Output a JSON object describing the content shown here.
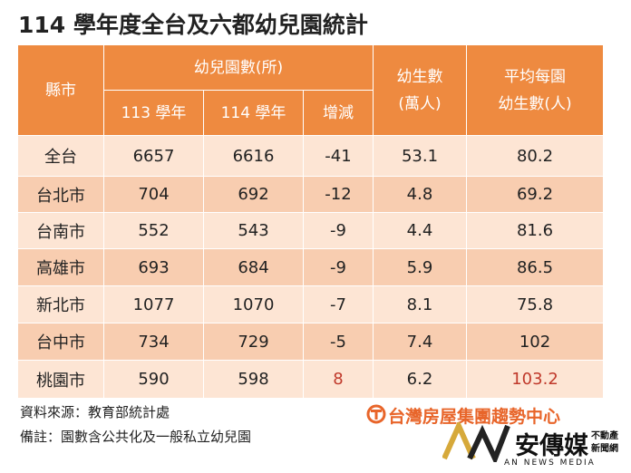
{
  "title": "114 學年度全台及六都幼兒園統計",
  "table": {
    "headers": {
      "county": "縣市",
      "kindergartens": "幼兒園數(所)",
      "year113": "113 學年",
      "year114": "114 學年",
      "change": "增減",
      "students": [
        "幼生數",
        "(萬人)"
      ],
      "average": [
        "平均每園",
        "幼生數(人)"
      ]
    },
    "rows": [
      [
        "全台",
        6657,
        6616,
        -41,
        53.1,
        80.2
      ],
      [
        "台北市",
        704,
        692,
        -12,
        4.8,
        69.2
      ],
      [
        "台南市",
        552,
        543,
        -9,
        4.4,
        81.6
      ],
      [
        "高雄市",
        693,
        684,
        -9,
        5.9,
        86.5
      ],
      [
        "新北市",
        1077,
        1070,
        -7,
        8.1,
        75.8
      ],
      [
        "台中市",
        734,
        729,
        -5,
        7.4,
        102
      ],
      [
        "桃園市",
        590,
        598,
        8,
        6.2,
        103.2
      ]
    ],
    "header_color": "#ee8a40",
    "row_colors": [
      "#fde5d4",
      "#f8cdb0"
    ],
    "highlight_color": "#c0392b",
    "highlight_cells": [
      [
        6,
        3
      ],
      [
        6,
        5
      ]
    ]
  },
  "notes": [
    "資料來源：教育部統計處",
    "備註：園數含公共化及一般私立幼兒園"
  ],
  "logos": {
    "trend": "台灣房屋集團趨勢中心",
    "media": "安傳媒",
    "media_sub": [
      "不動產",
      "新聞網"
    ],
    "media_en": "AN NEWS MEDIA"
  }
}
